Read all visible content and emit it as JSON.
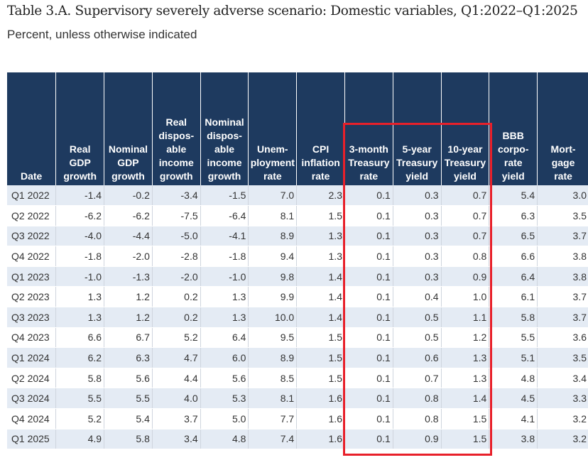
{
  "title": "Table 3.A. Supervisory severely adverse scenario: Domestic variables, Q1:2022–Q1:2025",
  "subtitle": "Percent, unless otherwise indicated",
  "columns": [
    {
      "key": "date",
      "label": [
        "Date"
      ]
    },
    {
      "key": "real_gdp",
      "label": [
        "Real",
        "GDP",
        "growth"
      ]
    },
    {
      "key": "nominal_gdp",
      "label": [
        "Nominal",
        "GDP",
        "growth"
      ]
    },
    {
      "key": "real_dpi",
      "label": [
        "Real",
        "dispos-",
        "able",
        "income",
        "growth"
      ]
    },
    {
      "key": "nominal_dpi",
      "label": [
        "Nominal",
        "dispos-",
        "able",
        "income",
        "growth"
      ]
    },
    {
      "key": "unemp",
      "label": [
        "Unem-",
        "ployment",
        "rate"
      ]
    },
    {
      "key": "cpi",
      "label": [
        "CPI",
        "inflation",
        "rate"
      ]
    },
    {
      "key": "t3m",
      "label": [
        "3-month",
        "Treasury",
        "rate"
      ]
    },
    {
      "key": "t5y",
      "label": [
        "5-year",
        "Treasury",
        "yield"
      ]
    },
    {
      "key": "t10y",
      "label": [
        "10-year",
        "Treasury",
        "yield"
      ]
    },
    {
      "key": "bbb",
      "label": [
        "BBB",
        "corpo-",
        "rate",
        "yield"
      ]
    },
    {
      "key": "mortgage",
      "label": [
        "Mort-",
        "gage",
        "rate"
      ]
    }
  ],
  "rows": [
    [
      "Q1 2022",
      "-1.4",
      "-0.2",
      "-3.4",
      "-1.5",
      "7.0",
      "2.3",
      "0.1",
      "0.3",
      "0.7",
      "5.4",
      "3.0"
    ],
    [
      "Q2 2022",
      "-6.2",
      "-6.2",
      "-7.5",
      "-6.4",
      "8.1",
      "1.5",
      "0.1",
      "0.3",
      "0.7",
      "6.3",
      "3.5"
    ],
    [
      "Q3 2022",
      "-4.0",
      "-4.4",
      "-5.0",
      "-4.1",
      "8.9",
      "1.3",
      "0.1",
      "0.3",
      "0.7",
      "6.5",
      "3.7"
    ],
    [
      "Q4 2022",
      "-1.8",
      "-2.0",
      "-2.8",
      "-1.8",
      "9.4",
      "1.3",
      "0.1",
      "0.3",
      "0.8",
      "6.6",
      "3.8"
    ],
    [
      "Q1 2023",
      "-1.0",
      "-1.3",
      "-2.0",
      "-1.0",
      "9.8",
      "1.4",
      "0.1",
      "0.3",
      "0.9",
      "6.4",
      "3.8"
    ],
    [
      "Q2 2023",
      "1.3",
      "1.2",
      "0.2",
      "1.3",
      "9.9",
      "1.4",
      "0.1",
      "0.4",
      "1.0",
      "6.1",
      "3.7"
    ],
    [
      "Q3 2023",
      "1.3",
      "1.2",
      "0.2",
      "1.3",
      "10.0",
      "1.4",
      "0.1",
      "0.5",
      "1.1",
      "5.8",
      "3.7"
    ],
    [
      "Q4 2023",
      "6.6",
      "6.7",
      "5.2",
      "6.4",
      "9.5",
      "1.5",
      "0.1",
      "0.5",
      "1.2",
      "5.5",
      "3.6"
    ],
    [
      "Q1 2024",
      "6.2",
      "6.3",
      "4.7",
      "6.0",
      "8.9",
      "1.5",
      "0.1",
      "0.6",
      "1.3",
      "5.1",
      "3.5"
    ],
    [
      "Q2 2024",
      "5.8",
      "5.6",
      "4.4",
      "5.6",
      "8.5",
      "1.5",
      "0.1",
      "0.7",
      "1.3",
      "4.8",
      "3.4"
    ],
    [
      "Q3 2024",
      "5.5",
      "5.5",
      "4.0",
      "5.3",
      "8.1",
      "1.6",
      "0.1",
      "0.8",
      "1.4",
      "4.5",
      "3.3"
    ],
    [
      "Q4 2024",
      "5.2",
      "5.4",
      "3.7",
      "5.0",
      "7.7",
      "1.6",
      "0.1",
      "0.8",
      "1.5",
      "4.1",
      "3.2"
    ],
    [
      "Q1 2025",
      "4.9",
      "5.8",
      "3.4",
      "4.8",
      "7.4",
      "1.6",
      "0.1",
      "0.9",
      "1.5",
      "3.8",
      "3.2"
    ]
  ],
  "colors": {
    "header_bg": "#1e3a5f",
    "row_stripe": "#e4ebf4",
    "highlight_border": "#e8202a"
  }
}
